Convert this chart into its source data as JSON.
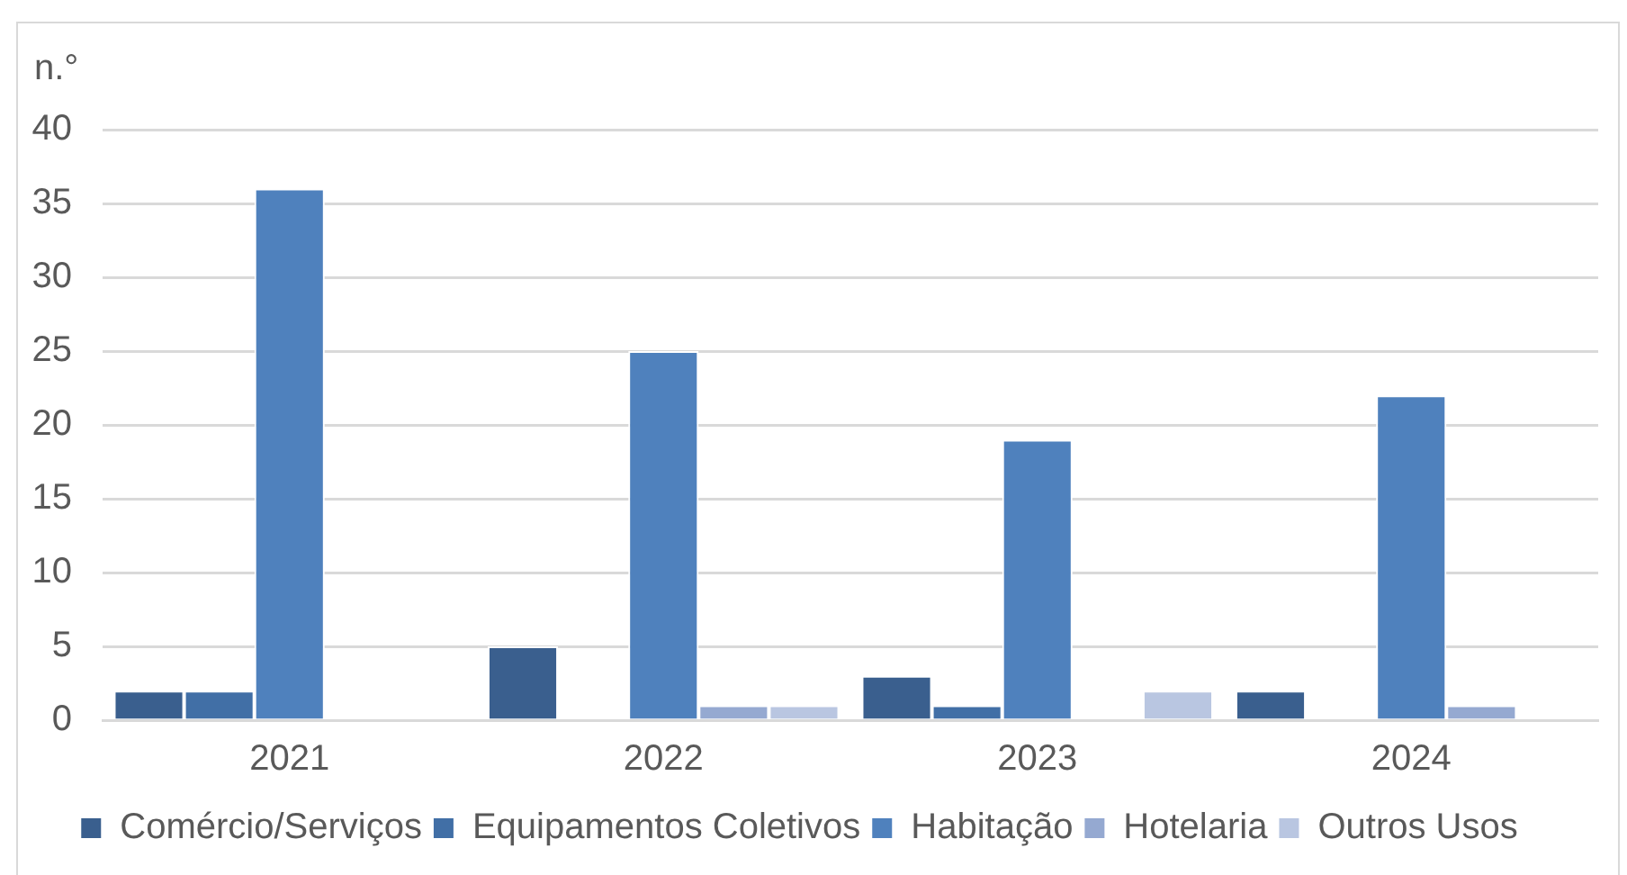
{
  "chart_data": {
    "type": "bar",
    "ylabel": "n.°",
    "categories": [
      "2021",
      "2022",
      "2023",
      "2024"
    ],
    "series": [
      {
        "name": "Comércio/Serviços",
        "color": "#3a5f8e",
        "values": [
          2,
          5,
          3,
          2
        ]
      },
      {
        "name": "Equipamentos Coletivos",
        "color": "#416fa6",
        "values": [
          2,
          0,
          1,
          0
        ]
      },
      {
        "name": "Habitação",
        "color": "#4f81bd",
        "values": [
          36,
          25,
          19,
          22
        ]
      },
      {
        "name": "Hotelaria",
        "color": "#95a9d1",
        "values": [
          0,
          1,
          0,
          1
        ]
      },
      {
        "name": "Outros Usos",
        "color": "#b9c6e1",
        "values": [
          0,
          1,
          2,
          0
        ]
      }
    ],
    "ylim": [
      0,
      40
    ],
    "yticks": [
      0,
      5,
      10,
      15,
      20,
      25,
      30,
      35,
      40
    ],
    "grid": "y",
    "legend": "bottom"
  }
}
